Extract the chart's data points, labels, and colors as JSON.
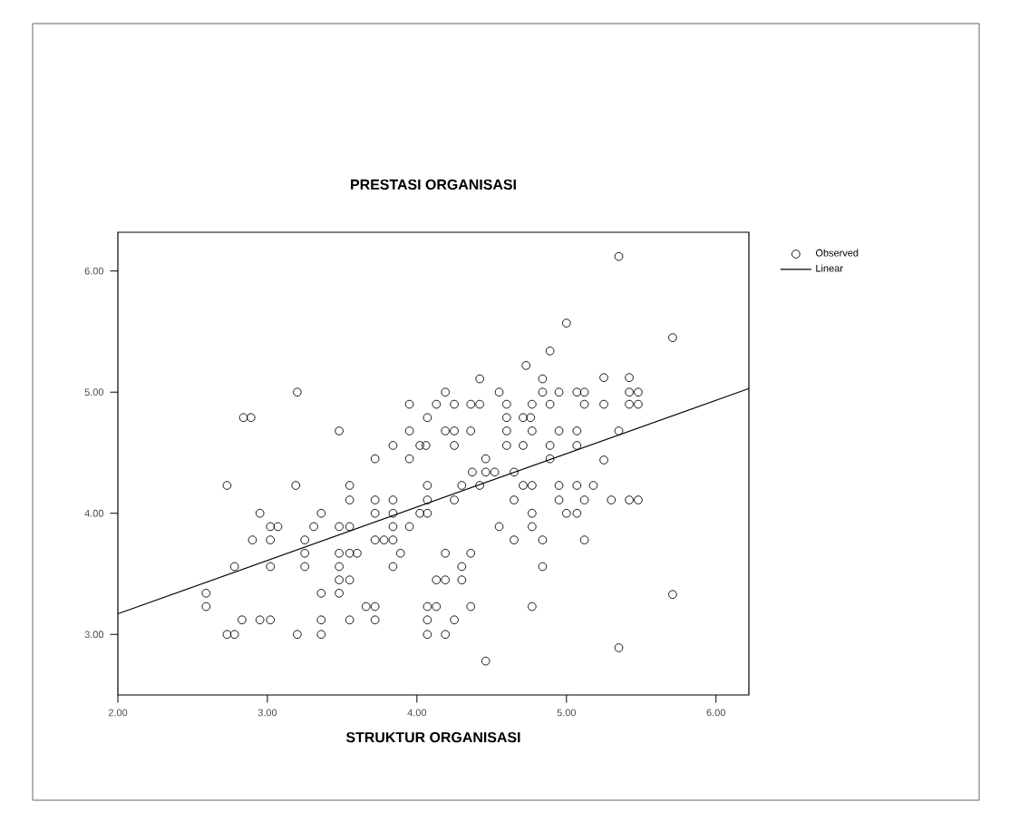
{
  "chart_data": {
    "type": "scatter",
    "title": "PRESTASI ORGANISASI",
    "xlabel": "STRUKTUR ORGANISASI",
    "xlim": [
      2.0,
      6.22
    ],
    "ylim": [
      2.5,
      6.32
    ],
    "xticks": [
      {
        "value": 2,
        "label": "2.00"
      },
      {
        "value": 3,
        "label": "3.00"
      },
      {
        "value": 4,
        "label": "4.00"
      },
      {
        "value": 5,
        "label": "5.00"
      },
      {
        "value": 6,
        "label": "6.00"
      }
    ],
    "yticks": [
      {
        "value": 3,
        "label": "3.00"
      },
      {
        "value": 4,
        "label": "4.00"
      },
      {
        "value": 5,
        "label": "5.00"
      },
      {
        "value": 6,
        "label": "6.00"
      }
    ],
    "legend": "top right",
    "grid": false,
    "series": [
      {
        "name": "Observed",
        "marker": "circle",
        "color": "#000000",
        "x": [
          4.89,
          4.73,
          4.42,
          4.84,
          3.2,
          4.19,
          4.55,
          4.84,
          4.95,
          3.95,
          4.13,
          4.25,
          4.36,
          4.42,
          4.6,
          4.77,
          4.89,
          2.84,
          2.89,
          4.07,
          4.6,
          4.71,
          4.76,
          3.48,
          3.95,
          4.19,
          4.25,
          4.36,
          4.6,
          4.77,
          4.95,
          3.84,
          4.02,
          4.06,
          4.25,
          4.6,
          4.71,
          4.89,
          3.72,
          3.95,
          4.46,
          4.89,
          4.37,
          4.46,
          4.52,
          4.65,
          2.73,
          3.19,
          3.55,
          4.07,
          4.3,
          4.42,
          4.71,
          4.77,
          4.95,
          3.55,
          3.72,
          3.84,
          4.07,
          4.25,
          4.65,
          4.95,
          2.95,
          3.36,
          3.72,
          3.84,
          4.02,
          4.07,
          4.77,
          3.02,
          3.07,
          3.31,
          3.48,
          3.55,
          3.84,
          3.95,
          4.55,
          4.77,
          2.9,
          3.02,
          3.25,
          3.72,
          3.78,
          3.84,
          4.65,
          4.84,
          3.25,
          3.48,
          3.55,
          3.6,
          3.89,
          4.19,
          4.36,
          2.78,
          3.02,
          3.25,
          3.48,
          3.84,
          4.3,
          4.84,
          3.48,
          3.55,
          4.13,
          4.19,
          4.3,
          2.59,
          3.36,
          3.48,
          2.59,
          3.66,
          3.72,
          4.07,
          4.13,
          4.36,
          4.77,
          2.83,
          2.95,
          3.02,
          3.36,
          3.55,
          3.72,
          4.07,
          4.25,
          2.73,
          2.78,
          3.2,
          3.36,
          4.07,
          4.19,
          4.46,
          5.35,
          5.0,
          5.71,
          5.25,
          5.42,
          5.07,
          5.12,
          5.42,
          5.48,
          5.12,
          5.25,
          5.42,
          5.48,
          5.07,
          5.35,
          5.07,
          5.25,
          5.07,
          5.18,
          5.12,
          5.3,
          5.42,
          5.48,
          5.0,
          5.07,
          5.12,
          5.71,
          5.35
        ],
        "values": [
          5.34,
          5.22,
          5.11,
          5.11,
          5.0,
          5.0,
          5.0,
          5.0,
          5.0,
          4.9,
          4.9,
          4.9,
          4.9,
          4.9,
          4.9,
          4.9,
          4.9,
          4.79,
          4.79,
          4.79,
          4.79,
          4.79,
          4.79,
          4.68,
          4.68,
          4.68,
          4.68,
          4.68,
          4.68,
          4.68,
          4.68,
          4.56,
          4.56,
          4.56,
          4.56,
          4.56,
          4.56,
          4.56,
          4.45,
          4.45,
          4.45,
          4.45,
          4.34,
          4.34,
          4.34,
          4.34,
          4.23,
          4.23,
          4.23,
          4.23,
          4.23,
          4.23,
          4.23,
          4.23,
          4.23,
          4.11,
          4.11,
          4.11,
          4.11,
          4.11,
          4.11,
          4.11,
          4.0,
          4.0,
          4.0,
          4.0,
          4.0,
          4.0,
          4.0,
          3.89,
          3.89,
          3.89,
          3.89,
          3.89,
          3.89,
          3.89,
          3.89,
          3.89,
          3.78,
          3.78,
          3.78,
          3.78,
          3.78,
          3.78,
          3.78,
          3.78,
          3.67,
          3.67,
          3.67,
          3.67,
          3.67,
          3.67,
          3.67,
          3.56,
          3.56,
          3.56,
          3.56,
          3.56,
          3.56,
          3.56,
          3.45,
          3.45,
          3.45,
          3.45,
          3.45,
          3.34,
          3.34,
          3.34,
          3.23,
          3.23,
          3.23,
          3.23,
          3.23,
          3.23,
          3.23,
          3.12,
          3.12,
          3.12,
          3.12,
          3.12,
          3.12,
          3.12,
          3.12,
          3.0,
          3.0,
          3.0,
          3.0,
          3.0,
          3.0,
          2.78,
          6.12,
          5.57,
          5.45,
          5.12,
          5.12,
          5.0,
          5.0,
          5.0,
          5.0,
          4.9,
          4.9,
          4.9,
          4.9,
          4.68,
          4.68,
          4.56,
          4.44,
          4.23,
          4.23,
          4.11,
          4.11,
          4.11,
          4.11,
          4.0,
          4.0,
          3.78,
          3.33,
          2.89
        ]
      },
      {
        "name": "Linear",
        "type": "line",
        "color": "#000000",
        "x": [
          2.0,
          6.22
        ],
        "values": [
          3.17,
          5.03
        ]
      }
    ]
  }
}
